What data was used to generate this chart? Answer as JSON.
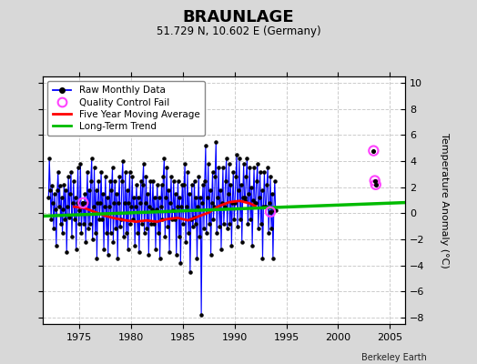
{
  "title": "BRAUNLAGE",
  "subtitle": "51.729 N, 10.602 E (Germany)",
  "ylabel": "Temperature Anomaly (°C)",
  "attribution": "Berkeley Earth",
  "xlim": [
    1971.5,
    2006.5
  ],
  "ylim": [
    -8.5,
    10.5
  ],
  "yticks": [
    -8,
    -6,
    -4,
    -2,
    0,
    2,
    4,
    6,
    8,
    10
  ],
  "xticks": [
    1975,
    1980,
    1985,
    1990,
    1995,
    2000,
    2005
  ],
  "bg_color": "#d8d8d8",
  "plot_bg_color": "#ffffff",
  "grid_color": "#cccccc",
  "raw_color": "#0000ff",
  "dot_color": "#000000",
  "ma_color": "#ff0000",
  "trend_color": "#00bb00",
  "qc_color": "#ff44ff",
  "raw_monthly_x": [
    1972.04,
    1972.12,
    1972.21,
    1972.29,
    1972.38,
    1972.46,
    1972.54,
    1972.63,
    1972.71,
    1972.79,
    1972.88,
    1972.96,
    1973.04,
    1973.12,
    1973.21,
    1973.29,
    1973.38,
    1973.46,
    1973.54,
    1973.63,
    1973.71,
    1973.79,
    1973.88,
    1973.96,
    1974.04,
    1974.12,
    1974.21,
    1974.29,
    1974.38,
    1974.46,
    1974.54,
    1974.63,
    1974.71,
    1974.79,
    1974.88,
    1974.96,
    1975.04,
    1975.12,
    1975.21,
    1975.29,
    1975.38,
    1975.46,
    1975.54,
    1975.63,
    1975.71,
    1975.79,
    1975.88,
    1975.96,
    1976.04,
    1976.12,
    1976.21,
    1976.29,
    1976.38,
    1976.46,
    1976.54,
    1976.63,
    1976.71,
    1976.79,
    1976.88,
    1976.96,
    1977.04,
    1977.12,
    1977.21,
    1977.29,
    1977.38,
    1977.46,
    1977.54,
    1977.63,
    1977.71,
    1977.79,
    1977.88,
    1977.96,
    1978.04,
    1978.12,
    1978.21,
    1978.29,
    1978.38,
    1978.46,
    1978.54,
    1978.63,
    1978.71,
    1978.79,
    1978.88,
    1978.96,
    1979.04,
    1979.12,
    1979.21,
    1979.29,
    1979.38,
    1979.46,
    1979.54,
    1979.63,
    1979.71,
    1979.79,
    1979.88,
    1979.96,
    1980.04,
    1980.12,
    1980.21,
    1980.29,
    1980.38,
    1980.46,
    1980.54,
    1980.63,
    1980.71,
    1980.79,
    1980.88,
    1980.96,
    1981.04,
    1981.12,
    1981.21,
    1981.29,
    1981.38,
    1981.46,
    1981.54,
    1981.63,
    1981.71,
    1981.79,
    1981.88,
    1981.96,
    1982.04,
    1982.12,
    1982.21,
    1982.29,
    1982.38,
    1982.46,
    1982.54,
    1982.63,
    1982.71,
    1982.79,
    1982.88,
    1982.96,
    1983.04,
    1983.12,
    1983.21,
    1983.29,
    1983.38,
    1983.46,
    1983.54,
    1983.63,
    1983.71,
    1983.79,
    1983.88,
    1983.96,
    1984.04,
    1984.12,
    1984.21,
    1984.29,
    1984.38,
    1984.46,
    1984.54,
    1984.63,
    1984.71,
    1984.79,
    1984.88,
    1984.96,
    1985.04,
    1985.12,
    1985.21,
    1985.29,
    1985.38,
    1985.46,
    1985.54,
    1985.63,
    1985.71,
    1985.79,
    1985.88,
    1985.96,
    1986.04,
    1986.12,
    1986.21,
    1986.29,
    1986.38,
    1986.46,
    1986.54,
    1986.63,
    1986.71,
    1986.79,
    1986.88,
    1986.96,
    1987.04,
    1987.12,
    1987.21,
    1987.29,
    1987.38,
    1987.46,
    1987.54,
    1987.63,
    1987.71,
    1987.79,
    1987.88,
    1987.96,
    1988.04,
    1988.12,
    1988.21,
    1988.29,
    1988.38,
    1988.46,
    1988.54,
    1988.63,
    1988.71,
    1988.79,
    1988.88,
    1988.96,
    1989.04,
    1989.12,
    1989.21,
    1989.29,
    1989.38,
    1989.46,
    1989.54,
    1989.63,
    1989.71,
    1989.79,
    1989.88,
    1989.96,
    1990.04,
    1990.12,
    1990.21,
    1990.29,
    1990.38,
    1990.46,
    1990.54,
    1990.63,
    1990.71,
    1990.79,
    1990.88,
    1990.96,
    1991.04,
    1991.12,
    1991.21,
    1991.29,
    1991.38,
    1991.46,
    1991.54,
    1991.63,
    1991.71,
    1991.79,
    1991.88,
    1991.96,
    1992.04,
    1992.12,
    1992.21,
    1992.29,
    1992.38,
    1992.46,
    1992.54,
    1992.63,
    1992.71,
    1992.79,
    1992.88,
    1992.96,
    1993.04,
    1993.12,
    1993.21,
    1993.29,
    1993.38,
    1993.46,
    1993.54,
    1993.63,
    1993.71,
    1993.79,
    1993.88,
    1993.96
  ],
  "raw_monthly_y": [
    1.2,
    4.2,
    1.8,
    -0.5,
    2.1,
    0.8,
    -1.2,
    1.5,
    0.3,
    -2.5,
    1.8,
    3.2,
    0.5,
    2.1,
    -0.8,
    1.2,
    -1.5,
    0.3,
    2.2,
    -0.5,
    1.8,
    -3.0,
    0.5,
    2.8,
    -0.3,
    1.5,
    3.2,
    -1.8,
    0.8,
    2.5,
    -0.5,
    1.2,
    -2.8,
    0.8,
    3.5,
    -0.8,
    0.2,
    3.8,
    -1.5,
    0.5,
    0.8,
    -0.8,
    1.5,
    -2.2,
    0.8,
    3.2,
    -1.2,
    1.8,
    -0.8,
    2.5,
    4.2,
    -2.0,
    0.5,
    3.5,
    -1.5,
    1.8,
    -3.5,
    0.8,
    2.5,
    -0.5,
    0.8,
    3.2,
    -0.5,
    1.5,
    -2.8,
    0.5,
    2.8,
    -1.5,
    1.2,
    -3.2,
    0.5,
    2.5,
    -1.5,
    1.8,
    3.5,
    -2.2,
    0.8,
    2.5,
    -1.2,
    1.5,
    -3.5,
    0.8,
    2.8,
    -1.0,
    -0.5,
    2.5,
    4.0,
    -1.8,
    0.8,
    3.2,
    -1.5,
    1.8,
    -2.8,
    0.8,
    3.2,
    -0.8,
    0.5,
    2.8,
    -0.5,
    1.2,
    -2.5,
    0.5,
    2.2,
    -1.5,
    1.2,
    -3.0,
    0.8,
    2.5,
    -0.8,
    2.2,
    3.8,
    -1.5,
    0.8,
    2.8,
    -1.2,
    1.5,
    -3.2,
    0.5,
    2.5,
    -0.8,
    0.3,
    2.5,
    -0.8,
    1.2,
    -2.8,
    0.3,
    2.2,
    -1.5,
    1.2,
    -3.5,
    0.5,
    2.2,
    -0.5,
    2.8,
    4.2,
    -1.8,
    1.2,
    3.5,
    -1.0,
    1.8,
    -3.0,
    0.8,
    2.8,
    -0.5,
    0.2,
    2.5,
    -0.5,
    1.5,
    -3.2,
    0.5,
    2.5,
    -1.8,
    1.2,
    -3.8,
    0.5,
    2.2,
    -0.8,
    2.2,
    3.8,
    -2.2,
    0.5,
    3.2,
    -1.5,
    1.5,
    -4.5,
    -0.5,
    2.2,
    -1.0,
    -0.3,
    2.5,
    -0.8,
    1.2,
    -3.5,
    0.5,
    2.8,
    -1.8,
    1.2,
    -7.8,
    0.8,
    2.2,
    -1.2,
    2.5,
    5.2,
    -1.5,
    1.2,
    3.8,
    -0.8,
    1.8,
    -3.2,
    0.8,
    3.2,
    -0.5,
    0.5,
    2.8,
    5.5,
    -1.5,
    1.2,
    3.5,
    -1.0,
    1.8,
    -2.8,
    0.8,
    3.5,
    -0.8,
    0.5,
    2.5,
    4.2,
    -1.2,
    1.5,
    3.8,
    -0.8,
    2.2,
    -2.5,
    0.8,
    3.2,
    -0.5,
    0.8,
    2.8,
    4.5,
    -1.0,
    1.8,
    4.2,
    -0.5,
    2.2,
    -2.2,
    1.2,
    3.8,
    1.0,
    1.2,
    2.8,
    4.2,
    -0.8,
    1.5,
    3.5,
    -0.5,
    2.0,
    -2.5,
    1.0,
    3.5,
    0.8,
    0.8,
    2.5,
    3.8,
    -1.2,
    1.2,
    3.2,
    -0.8,
    1.8,
    -3.5,
    0.5,
    3.2,
    0.5,
    0.5,
    2.2,
    3.5,
    -1.5,
    0.8,
    2.8,
    -1.2,
    1.5,
    -3.5,
    0.2,
    2.5,
    0.2
  ],
  "qc_fail_points": [
    [
      1975.38,
      0.8
    ],
    [
      2003.42,
      4.8
    ],
    [
      2003.54,
      2.5
    ],
    [
      2003.63,
      2.2
    ],
    [
      1993.46,
      0.1
    ]
  ],
  "trend_x": [
    1971.5,
    2006.5
  ],
  "trend_y": [
    -0.22,
    0.82
  ],
  "five_year_ma_x": [
    1974.5,
    1975.5,
    1976.5,
    1977.5,
    1978.5,
    1979.5,
    1980.5,
    1981.5,
    1982.5,
    1983.5,
    1984.5,
    1985.5,
    1986.5,
    1987.5,
    1988.5,
    1989.5,
    1990.5,
    1991.5,
    1992.0
  ],
  "five_year_ma_y": [
    0.5,
    0.4,
    0.1,
    -0.2,
    -0.4,
    -0.55,
    -0.65,
    -0.55,
    -0.65,
    -0.45,
    -0.35,
    -0.55,
    -0.25,
    0.05,
    0.55,
    0.85,
    0.95,
    0.75,
    0.55
  ]
}
